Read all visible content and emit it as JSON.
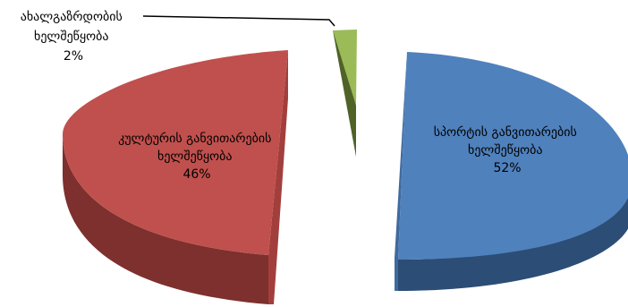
{
  "chart_data": {
    "type": "pie",
    "style": "3d-exploded",
    "slices": [
      {
        "name": "სპორტის განვითარების ხელშეწყობა",
        "label_lines": [
          "სპორტის განვითარების",
          "ხელშეწყობა"
        ],
        "value": 52,
        "value_label": "52%",
        "color": "#4f81bd",
        "side_color": "#2c4d75",
        "lead_color": "#3f6a9e"
      },
      {
        "name": "კულტურის განვითარების ხელშეწყობა",
        "label_lines": [
          "კულტურის განვითარების",
          "ხელშეწყობა"
        ],
        "value": 46,
        "value_label": "46%",
        "color": "#c0504d",
        "side_color": "#7d302d",
        "lead_color": "#a23f3c"
      },
      {
        "name": "ახალგაზრდობის ხელშეწყობა",
        "label_lines": [
          "ახალგაზრდობის",
          "ხელშეწყობა"
        ],
        "value": 2,
        "value_label": "2%",
        "color": "#9bbb59",
        "side_color": "#4f6228",
        "lead_color": "#7f9c44"
      }
    ]
  }
}
